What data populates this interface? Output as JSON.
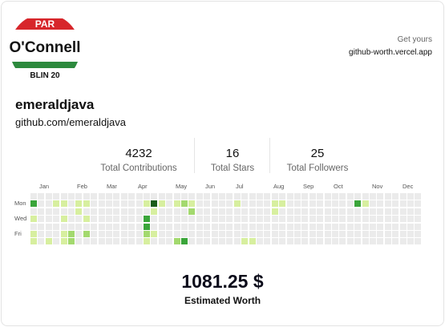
{
  "profile": {
    "avatar_text": {
      "line1": "PAR",
      "line2": "O'Connell",
      "line3": "BLIN 20"
    },
    "username": "emeraldjava",
    "url": "github.com/emeraldjava"
  },
  "promo": {
    "line1": "Get yours",
    "line2": "github-worth.vercel.app"
  },
  "stats": [
    {
      "value": "4232",
      "label": "Total Contributions"
    },
    {
      "value": "16",
      "label": "Total Stars"
    },
    {
      "value": "25",
      "label": "Total Followers"
    }
  ],
  "heatmap": {
    "months": [
      "Jan",
      "Feb",
      "Mar",
      "Apr",
      "May",
      "Jun",
      "Jul",
      "Aug",
      "Sep",
      "Oct",
      "Nov",
      "Dec"
    ],
    "days": [
      "Mon",
      "Wed",
      "Fri"
    ],
    "colors": [
      "#ebebeb",
      "#d7ef9f",
      "#a3d96e",
      "#3aa53a",
      "#1a5c1a"
    ],
    "weeks": 52,
    "active": [
      [
        0,
        1,
        3
      ],
      [
        0,
        3,
        1
      ],
      [
        0,
        5,
        1
      ],
      [
        0,
        6,
        1
      ],
      [
        2,
        6,
        1
      ],
      [
        3,
        1,
        1
      ],
      [
        4,
        1,
        1
      ],
      [
        4,
        3,
        1
      ],
      [
        4,
        5,
        1
      ],
      [
        4,
        6,
        1
      ],
      [
        5,
        5,
        2
      ],
      [
        5,
        6,
        2
      ],
      [
        6,
        1,
        1
      ],
      [
        6,
        2,
        1
      ],
      [
        7,
        1,
        1
      ],
      [
        7,
        3,
        1
      ],
      [
        7,
        5,
        2
      ],
      [
        15,
        1,
        1
      ],
      [
        15,
        3,
        3
      ],
      [
        15,
        4,
        3
      ],
      [
        15,
        5,
        2
      ],
      [
        15,
        6,
        1
      ],
      [
        16,
        1,
        4
      ],
      [
        16,
        2,
        1
      ],
      [
        16,
        5,
        1
      ],
      [
        17,
        1,
        1
      ],
      [
        19,
        1,
        1
      ],
      [
        19,
        6,
        2
      ],
      [
        20,
        1,
        2
      ],
      [
        20,
        6,
        3
      ],
      [
        21,
        1,
        1
      ],
      [
        21,
        2,
        2
      ],
      [
        27,
        1,
        1
      ],
      [
        28,
        6,
        1
      ],
      [
        29,
        6,
        1
      ],
      [
        32,
        1,
        1
      ],
      [
        32,
        2,
        1
      ],
      [
        33,
        1,
        1
      ],
      [
        43,
        1,
        3
      ],
      [
        44,
        1,
        1
      ]
    ]
  },
  "worth": {
    "value": "1081.25 $",
    "label": "Estimated Worth"
  }
}
